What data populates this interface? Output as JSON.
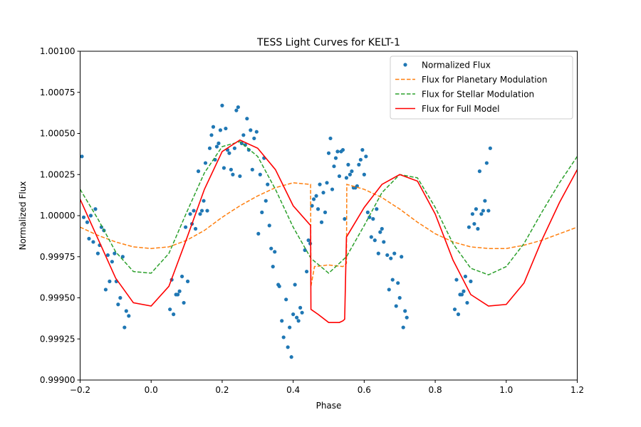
{
  "chart_data": {
    "type": "line",
    "title": "TESS Light Curves for KELT-1",
    "xlabel": "Phase",
    "ylabel": "Normalized Flux",
    "xlim": [
      -0.2,
      1.2
    ],
    "ylim": [
      0.999,
      1.001
    ],
    "xticks": [
      "−0.2",
      "0.0",
      "0.2",
      "0.4",
      "0.6",
      "0.8",
      "1.0",
      "1.2"
    ],
    "xtick_values": [
      -0.2,
      0.0,
      0.2,
      0.4,
      0.6,
      0.8,
      1.0,
      1.2
    ],
    "yticks": [
      "0.99900",
      "0.99925",
      "0.99950",
      "0.99975",
      "1.00000",
      "1.00025",
      "1.00050",
      "1.00075",
      "1.00100"
    ],
    "ytick_values": [
      0.999,
      0.99925,
      0.9995,
      0.99975,
      1.0,
      1.00025,
      1.0005,
      1.00075,
      1.001
    ],
    "grid": false,
    "legend_position": "top-right",
    "series": [
      {
        "name": "Normalized Flux",
        "kind": "scatter",
        "color": "#1f77b4",
        "points": [
          [
            -0.195,
            1.00036
          ],
          [
            -0.19,
            0.99999
          ],
          [
            -0.18,
            0.99996
          ],
          [
            -0.175,
            0.99986
          ],
          [
            -0.17,
            1.0
          ],
          [
            -0.163,
            0.99984
          ],
          [
            -0.157,
            1.00004
          ],
          [
            -0.15,
            0.99977
          ],
          [
            -0.145,
            0.99982
          ],
          [
            -0.14,
            0.99993
          ],
          [
            -0.133,
            0.99991
          ],
          [
            -0.128,
            0.99955
          ],
          [
            -0.122,
            0.99976
          ],
          [
            -0.117,
            0.9996
          ],
          [
            -0.11,
            0.99972
          ],
          [
            -0.103,
            0.99977
          ],
          [
            -0.098,
            0.9996
          ],
          [
            -0.093,
            0.99946
          ],
          [
            -0.087,
            0.9995
          ],
          [
            -0.08,
            0.99975
          ],
          [
            -0.075,
            0.99932
          ],
          [
            -0.07,
            0.99942
          ],
          [
            -0.063,
            0.99939
          ],
          [
            0.053,
            0.99943
          ],
          [
            0.058,
            0.99961
          ],
          [
            0.063,
            0.9994
          ],
          [
            0.07,
            0.99952
          ],
          [
            0.075,
            0.99952
          ],
          [
            0.08,
            0.99954
          ],
          [
            0.087,
            0.99963
          ],
          [
            0.092,
            0.99947
          ],
          [
            0.097,
            0.99993
          ],
          [
            0.103,
            0.9996
          ],
          [
            0.11,
            1.00001
          ],
          [
            0.115,
            0.99995
          ],
          [
            0.12,
            1.00003
          ],
          [
            0.125,
            0.99992
          ],
          [
            0.133,
            1.00027
          ],
          [
            0.138,
            1.00001
          ],
          [
            0.143,
            1.00003
          ],
          [
            0.148,
            1.00009
          ],
          [
            0.153,
            1.00032
          ],
          [
            0.158,
            1.00003
          ],
          [
            0.165,
            1.00041
          ],
          [
            0.17,
            1.00049
          ],
          [
            0.175,
            1.00054
          ],
          [
            0.18,
            1.00034
          ],
          [
            0.185,
            1.00042
          ],
          [
            0.19,
            1.00044
          ],
          [
            0.195,
            1.00052
          ],
          [
            0.2,
            1.00067
          ],
          [
            0.205,
            1.00029
          ],
          [
            0.21,
            1.00053
          ],
          [
            0.215,
            1.0004
          ],
          [
            0.22,
            1.00038
          ],
          [
            0.225,
            1.00028
          ],
          [
            0.23,
            1.00025
          ],
          [
            0.235,
            1.00041
          ],
          [
            0.24,
            1.00064
          ],
          [
            0.245,
            1.00066
          ],
          [
            0.25,
            1.00024
          ],
          [
            0.255,
            1.00044
          ],
          [
            0.26,
            1.00049
          ],
          [
            0.265,
            1.00043
          ],
          [
            0.27,
            1.00059
          ],
          [
            0.275,
            1.0004
          ],
          [
            0.28,
            1.00052
          ],
          [
            0.285,
            1.00028
          ],
          [
            0.29,
            1.00047
          ],
          [
            0.297,
            1.00051
          ],
          [
            0.302,
            0.99989
          ],
          [
            0.307,
            1.00025
          ],
          [
            0.312,
            1.00002
          ],
          [
            0.318,
            1.00035
          ],
          [
            0.323,
            1.00009
          ],
          [
            0.328,
            1.00019
          ],
          [
            0.333,
            0.99994
          ],
          [
            0.338,
            0.9998
          ],
          [
            0.343,
            0.99969
          ],
          [
            0.348,
            0.99978
          ],
          [
            0.358,
            0.99958
          ],
          [
            0.361,
            0.99957
          ],
          [
            0.368,
            0.99936
          ],
          [
            0.373,
            0.99926
          ],
          [
            0.38,
            0.99949
          ],
          [
            0.385,
            0.9992
          ],
          [
            0.39,
            0.99932
          ],
          [
            0.395,
            0.99914
          ],
          [
            0.4,
            0.9994
          ],
          [
            0.405,
            0.99958
          ],
          [
            0.41,
            0.99938
          ],
          [
            0.415,
            0.99936
          ],
          [
            0.42,
            0.99944
          ],
          [
            0.425,
            0.99941
          ],
          [
            0.433,
            0.99979
          ],
          [
            0.438,
            0.99966
          ],
          [
            0.443,
            0.99985
          ],
          [
            0.448,
            0.99983
          ],
          [
            0.453,
            1.00006
          ],
          [
            0.458,
            1.0001
          ],
          [
            0.465,
            1.00012
          ],
          [
            0.47,
            1.00004
          ],
          [
            0.475,
            1.00019
          ],
          [
            0.48,
            0.99996
          ],
          [
            0.485,
            1.00014
          ],
          [
            0.49,
            1.00002
          ],
          [
            0.495,
            1.0002
          ],
          [
            0.5,
            1.00038
          ],
          [
            0.505,
            1.00047
          ],
          [
            0.51,
            1.00016
          ],
          [
            0.515,
            1.0003
          ],
          [
            0.52,
            1.00035
          ],
          [
            0.525,
            1.00039
          ],
          [
            0.53,
            1.00024
          ],
          [
            0.535,
            1.00039
          ],
          [
            0.54,
            1.0004
          ],
          [
            0.545,
            0.99998
          ],
          [
            0.55,
            1.00023
          ],
          [
            0.555,
            1.00031
          ],
          [
            0.56,
            1.00025
          ],
          [
            0.565,
            1.00027
          ],
          [
            0.57,
            1.00017
          ],
          [
            0.575,
            1.00017
          ],
          [
            0.58,
            1.00018
          ],
          [
            0.585,
            1.00031
          ],
          [
            0.59,
            1.00034
          ],
          [
            0.595,
            1.0004
          ],
          [
            0.6,
            1.00025
          ],
          [
            0.605,
            1.00036
          ],
          [
            0.61,
            1.00002
          ],
          [
            0.615,
            0.99999
          ],
          [
            0.62,
            0.99987
          ],
          [
            0.625,
            0.99998
          ],
          [
            0.63,
            0.99985
          ],
          [
            0.635,
            1.00004
          ],
          [
            0.64,
            0.99977
          ],
          [
            0.645,
            0.9999
          ],
          [
            0.65,
            0.99992
          ],
          [
            0.655,
            0.99984
          ],
          [
            0.665,
            0.99976
          ],
          [
            0.67,
            0.99955
          ],
          [
            0.675,
            0.99974
          ],
          [
            0.68,
            0.99961
          ],
          [
            0.685,
            0.99977
          ],
          [
            0.69,
            0.99945
          ],
          [
            0.695,
            0.99959
          ],
          [
            0.7,
            0.9995
          ],
          [
            0.705,
            0.99975
          ],
          [
            0.71,
            0.99932
          ],
          [
            0.715,
            0.99942
          ],
          [
            0.72,
            0.99938
          ],
          [
            0.855,
            0.99943
          ],
          [
            0.86,
            0.99961
          ],
          [
            0.865,
            0.9994
          ],
          [
            0.87,
            0.99952
          ],
          [
            0.875,
            0.99952
          ],
          [
            0.88,
            0.99954
          ],
          [
            0.885,
            0.99963
          ],
          [
            0.89,
            0.99947
          ],
          [
            0.895,
            0.99993
          ],
          [
            0.9,
            0.9996
          ],
          [
            0.905,
            1.00001
          ],
          [
            0.91,
            0.99995
          ],
          [
            0.915,
            1.00004
          ],
          [
            0.92,
            0.99992
          ],
          [
            0.925,
            1.00027
          ],
          [
            0.93,
            1.00001
          ],
          [
            0.935,
            1.00003
          ],
          [
            0.94,
            1.00009
          ],
          [
            0.945,
            1.00032
          ],
          [
            0.95,
            1.00003
          ],
          [
            0.955,
            1.00041
          ]
        ]
      },
      {
        "name": "Flux for Planetary Modulation",
        "kind": "line",
        "style": "dashed",
        "color": "#ff7f0e",
        "points": [
          [
            -0.2,
            0.99993
          ],
          [
            -0.15,
            0.99988
          ],
          [
            -0.1,
            0.99984
          ],
          [
            -0.05,
            0.99981
          ],
          [
            0.0,
            0.9998
          ],
          [
            0.05,
            0.99981
          ],
          [
            0.1,
            0.99985
          ],
          [
            0.15,
            0.99991
          ],
          [
            0.2,
            0.99999
          ],
          [
            0.25,
            1.00006
          ],
          [
            0.3,
            1.00012
          ],
          [
            0.35,
            1.00017
          ],
          [
            0.4,
            1.0002
          ],
          [
            0.449,
            1.00019
          ],
          [
            0.45,
            0.99957
          ],
          [
            0.46,
            0.99969
          ],
          [
            0.5,
            0.9997
          ],
          [
            0.54,
            0.99969
          ],
          [
            0.55,
            0.99971
          ],
          [
            0.551,
            1.00019
          ],
          [
            0.6,
            1.00016
          ],
          [
            0.65,
            1.00011
          ],
          [
            0.7,
            1.00004
          ],
          [
            0.75,
            0.99996
          ],
          [
            0.8,
            0.99989
          ],
          [
            0.85,
            0.99984
          ],
          [
            0.9,
            0.99981
          ],
          [
            0.95,
            0.9998
          ],
          [
            1.0,
            0.9998
          ],
          [
            1.05,
            0.99982
          ],
          [
            1.1,
            0.99985
          ],
          [
            1.15,
            0.99989
          ],
          [
            1.2,
            0.99993
          ]
        ]
      },
      {
        "name": "Flux for Stellar Modulation",
        "kind": "line",
        "style": "dashed",
        "color": "#2ca02c",
        "points": [
          [
            -0.2,
            1.00016
          ],
          [
            -0.15,
            0.99998
          ],
          [
            -0.1,
            0.99978
          ],
          [
            -0.05,
            0.99966
          ],
          [
            0.0,
            0.99965
          ],
          [
            0.05,
            0.99977
          ],
          [
            0.1,
            1.00002
          ],
          [
            0.15,
            1.00026
          ],
          [
            0.2,
            1.00042
          ],
          [
            0.25,
            1.00045
          ],
          [
            0.3,
            1.00036
          ],
          [
            0.35,
            1.00016
          ],
          [
            0.4,
            0.99993
          ],
          [
            0.45,
            0.99974
          ],
          [
            0.5,
            0.99965
          ],
          [
            0.55,
            0.99975
          ],
          [
            0.6,
            0.99994
          ],
          [
            0.65,
            1.00014
          ],
          [
            0.7,
            1.00025
          ],
          [
            0.75,
            1.00023
          ],
          [
            0.8,
            1.00005
          ],
          [
            0.85,
            0.99983
          ],
          [
            0.9,
            0.99968
          ],
          [
            0.95,
            0.99964
          ],
          [
            1.0,
            0.99969
          ],
          [
            1.05,
            0.99983
          ],
          [
            1.1,
            1.00002
          ],
          [
            1.15,
            1.0002
          ],
          [
            1.2,
            1.00036
          ]
        ]
      },
      {
        "name": "Flux for Full Model",
        "kind": "line",
        "style": "solid",
        "color": "#ff0000",
        "points": [
          [
            -0.2,
            1.0001
          ],
          [
            -0.15,
            0.99986
          ],
          [
            -0.1,
            0.99962
          ],
          [
            -0.05,
            0.99947
          ],
          [
            0.0,
            0.99945
          ],
          [
            0.05,
            0.99957
          ],
          [
            0.1,
            0.99986
          ],
          [
            0.15,
            1.00016
          ],
          [
            0.2,
            1.00039
          ],
          [
            0.25,
            1.00046
          ],
          [
            0.3,
            1.00041
          ],
          [
            0.35,
            1.00028
          ],
          [
            0.4,
            1.00006
          ],
          [
            0.449,
            0.99994
          ],
          [
            0.45,
            0.99943
          ],
          [
            0.47,
            0.9994
          ],
          [
            0.5,
            0.99935
          ],
          [
            0.53,
            0.99935
          ],
          [
            0.54,
            0.99936
          ],
          [
            0.545,
            0.99937
          ],
          [
            0.55,
            0.99987
          ],
          [
            0.6,
            1.00005
          ],
          [
            0.65,
            1.00019
          ],
          [
            0.7,
            1.00025
          ],
          [
            0.75,
            1.00021
          ],
          [
            0.8,
            1.00001
          ],
          [
            0.85,
            0.99973
          ],
          [
            0.9,
            0.99952
          ],
          [
            0.95,
            0.99945
          ],
          [
            1.0,
            0.99946
          ],
          [
            1.05,
            0.99959
          ],
          [
            1.1,
            0.99985
          ],
          [
            1.15,
            1.00008
          ],
          [
            1.2,
            1.00028
          ]
        ]
      }
    ]
  }
}
